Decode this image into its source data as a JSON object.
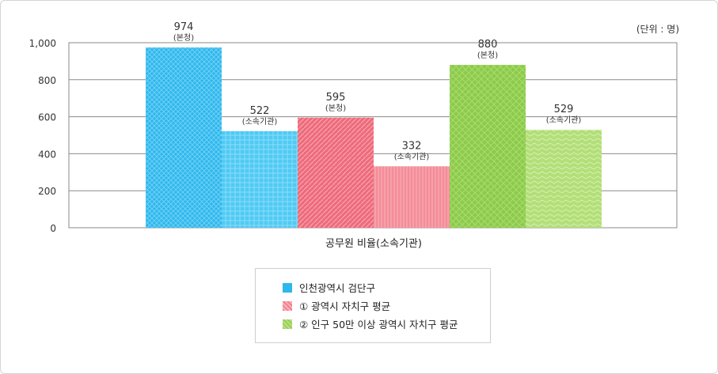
{
  "unit_label": "(단위 : 명)",
  "legend": [
    {
      "label": "인천광역시 검단구",
      "color": "#2fb7ec"
    },
    {
      "label": "① 광역시 자치구 평균",
      "color": "#f3808e"
    },
    {
      "label": "② 인구 50만 이상 광역시 자치구 평균",
      "color": "#99cf54"
    }
  ],
  "chart_data": {
    "type": "bar",
    "xlabel": "공무원 비율(소속기관)",
    "ylabel": "",
    "ylim": [
      0,
      1000
    ],
    "yticks": [
      "0",
      "200",
      "400",
      "600",
      "800",
      "1,000"
    ],
    "categories": [
      "공무원 비율(소속기관)"
    ],
    "bars": [
      {
        "series": 0,
        "value": 974,
        "label": "974",
        "sub": "(본청)",
        "color": "#2fb7ec"
      },
      {
        "series": 0,
        "value": 522,
        "label": "522",
        "sub": "(소속기관)",
        "color": "#5ccdf5"
      },
      {
        "series": 1,
        "value": 595,
        "label": "595",
        "sub": "(본청)",
        "color": "#f0707f"
      },
      {
        "series": 1,
        "value": 332,
        "label": "332",
        "sub": "(소속기관)",
        "color": "#f5949f"
      },
      {
        "series": 2,
        "value": 880,
        "label": "880",
        "sub": "(본청)",
        "color": "#8ccb4a"
      },
      {
        "series": 2,
        "value": 529,
        "label": "529",
        "sub": "(소속기관)",
        "color": "#b5e07c"
      }
    ]
  }
}
